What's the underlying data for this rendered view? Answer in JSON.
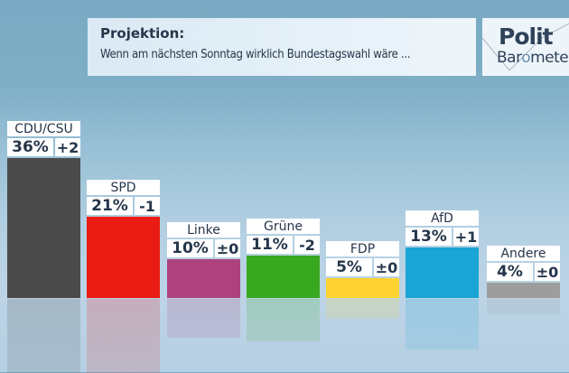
{
  "header": {
    "title": "Projektion:",
    "subtitle": "Wenn am nächsten Sonntag wirklich Bundestagswahl wäre ..."
  },
  "logo": {
    "line1": "Polit",
    "line2_a": "Bar",
    "line2_o": "o",
    "line2_b": "mete"
  },
  "chart_data": {
    "type": "bar",
    "title": "Projektion: Wenn am nächsten Sonntag wirklich Bundestagswahl wäre ...",
    "xlabel": "",
    "ylabel": "",
    "ylim": [
      0,
      40
    ],
    "categories": [
      "CDU/CSU",
      "SPD",
      "Linke",
      "Grüne",
      "FDP",
      "AfD",
      "Andere"
    ],
    "values": [
      36,
      21,
      10,
      11,
      5,
      13,
      4
    ],
    "value_labels": [
      "36%",
      "21%",
      "10%",
      "11%",
      "5%",
      "13%",
      "4%"
    ],
    "changes": [
      "+2",
      "-1",
      "±0",
      "-2",
      "±0",
      "+1",
      "±0"
    ],
    "colors": [
      "#4a4a4a",
      "#ea1b13",
      "#ad427f",
      "#38a820",
      "#fed230",
      "#1aa5d6",
      "#9d9d9d"
    ],
    "grid": false,
    "legend": "none"
  }
}
